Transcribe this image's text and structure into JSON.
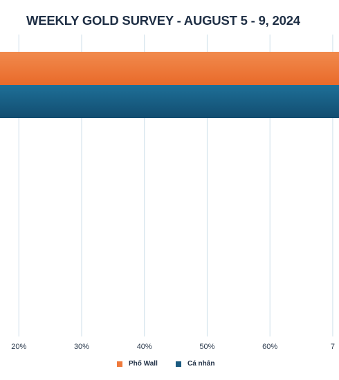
{
  "chart_data": {
    "type": "bar",
    "orientation": "horizontal",
    "title": "WEEKLY GOLD SURVEY - AUGUST 5 - 9, 2024",
    "xlabel": "",
    "ylabel": "",
    "categories": [
      ""
    ],
    "xlim": [
      17,
      71
    ],
    "x_ticks": [
      "20%",
      "30%",
      "40%",
      "50%",
      "60%",
      "7"
    ],
    "grid": true,
    "legend_position": "bottom",
    "series": [
      {
        "name": "Phố Wall",
        "color": "#ef7a3c",
        "values": [
          71
        ]
      },
      {
        "name": "Cá nhân",
        "color": "#1a5a80",
        "values": [
          71
        ]
      }
    ]
  }
}
